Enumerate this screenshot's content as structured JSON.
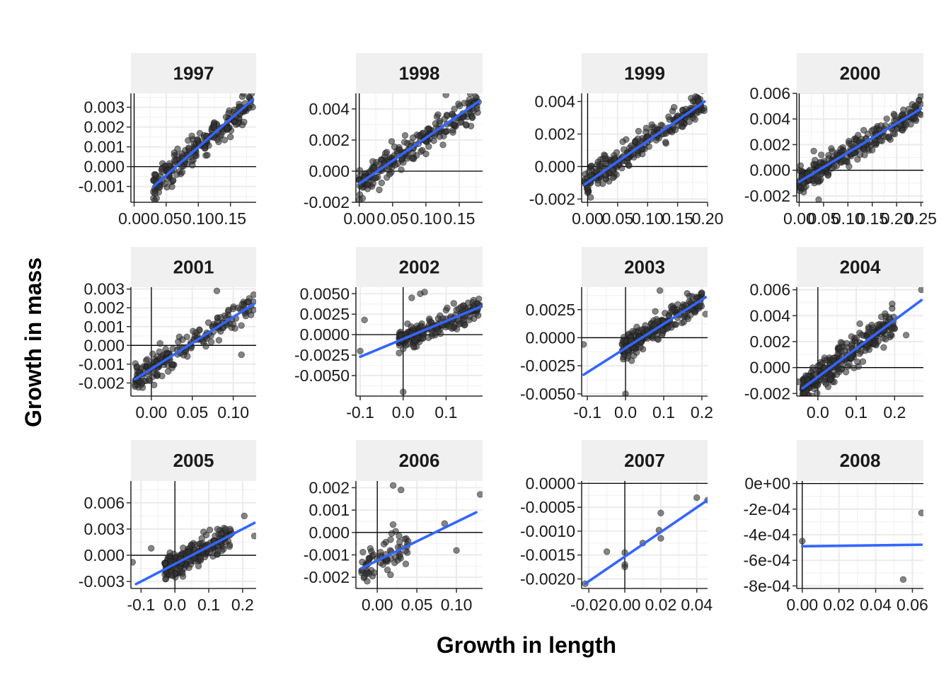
{
  "chart_data": {
    "type": "scatter",
    "title": "",
    "xlabel": "Growth in length",
    "ylabel": "Growth in mass",
    "layout": "facet-grid 3 rows x 4 columns, free scales",
    "grid": true,
    "reference_lines": "x=0 and y=0 drawn in black",
    "point_color": "#333333",
    "fit_color": "#3366FF",
    "strip_color": "#F0F0F0",
    "panels": [
      {
        "label": "1997",
        "xlim": [
          -0.005,
          0.19
        ],
        "ylim": [
          -0.0018,
          0.0037
        ],
        "xticks": [
          0,
          0.05,
          0.1,
          0.15
        ],
        "xtick_labels": [
          "0.00",
          "0.05",
          "0.10",
          "0.15"
        ],
        "yticks": [
          -0.001,
          0,
          0.001,
          0.002,
          0.003
        ],
        "ytick_labels": [
          "-0.001",
          "0.000",
          "0.001",
          "0.002",
          "0.003"
        ],
        "n": 220,
        "x_range": [
          0.03,
          0.185
        ],
        "fit": [
          [
            0.03,
            -0.001
          ],
          [
            0.185,
            0.0034
          ]
        ],
        "noise": 0.00045,
        "extra_points": [
          [
            0.17,
            0.0037
          ],
          [
            0.035,
            -0.0016
          ],
          [
            0.15,
            0.0015
          ]
        ]
      },
      {
        "label": "1998",
        "xlim": [
          -0.005,
          0.185
        ],
        "ylim": [
          -0.002,
          0.005
        ],
        "xticks": [
          0,
          0.05,
          0.1,
          0.15
        ],
        "xtick_labels": [
          "0.00",
          "0.05",
          "0.10",
          "0.15"
        ],
        "yticks": [
          -0.002,
          0,
          0.002,
          0.004
        ],
        "ytick_labels": [
          "-0.002",
          "0.000",
          "0.002",
          "0.004"
        ],
        "n": 230,
        "x_range": [
          0.0,
          0.18
        ],
        "fit": [
          [
            0.0,
            -0.0008
          ],
          [
            0.18,
            0.0045
          ]
        ],
        "noise": 0.0006,
        "extra_points": [
          [
            0.13,
            0.0049
          ],
          [
            0.03,
            -0.0012
          ],
          [
            0.16,
            0.003
          ]
        ]
      },
      {
        "label": "1999",
        "xlim": [
          -0.01,
          0.2
        ],
        "ylim": [
          -0.0022,
          0.0045
        ],
        "xticks": [
          0,
          0.05,
          0.1,
          0.15,
          0.2
        ],
        "xtick_labels": [
          "0.00",
          "0.05",
          "0.10",
          "0.15",
          "0.20"
        ],
        "yticks": [
          -0.002,
          0,
          0.002,
          0.004
        ],
        "ytick_labels": [
          "-0.002",
          "0.000",
          "0.002",
          "0.004"
        ],
        "n": 260,
        "x_range": [
          -0.005,
          0.195
        ],
        "fit": [
          [
            -0.005,
            -0.0011
          ],
          [
            0.195,
            0.004
          ]
        ],
        "noise": 0.0005,
        "extra_points": [
          [
            0.18,
            0.0043
          ],
          [
            0.005,
            -0.0019
          ],
          [
            0.13,
            0.0015
          ]
        ]
      },
      {
        "label": "2000",
        "xlim": [
          -0.005,
          0.255
        ],
        "ylim": [
          -0.0025,
          0.006
        ],
        "xticks": [
          0,
          0.05,
          0.1,
          0.15,
          0.2,
          0.25
        ],
        "xtick_labels": [
          "0.00",
          "0.05",
          "0.10",
          "0.15",
          "0.20",
          "0.25"
        ],
        "yticks": [
          -0.002,
          0,
          0.002,
          0.004,
          0.006
        ],
        "ytick_labels": [
          "-0.002",
          "0.000",
          "0.002",
          "0.004",
          "0.006"
        ],
        "n": 270,
        "x_range": [
          0.0,
          0.25
        ],
        "fit": [
          [
            0.0,
            -0.0009
          ],
          [
            0.25,
            0.0048
          ]
        ],
        "noise": 0.0006,
        "extra_points": [
          [
            0.25,
            0.0058
          ],
          [
            0.01,
            -0.0014
          ],
          [
            0.03,
            0.0015
          ],
          [
            0.04,
            -0.0023
          ]
        ]
      },
      {
        "label": "2001",
        "xlim": [
          -0.025,
          0.128
        ],
        "ylim": [
          -0.0027,
          0.0031
        ],
        "xticks": [
          0,
          0.05,
          0.1
        ],
        "xtick_labels": [
          "0.00",
          "0.05",
          "0.10"
        ],
        "yticks": [
          -0.002,
          -0.001,
          0,
          0.001,
          0.002,
          0.003
        ],
        "ytick_labels": [
          "-0.002",
          "-0.001",
          "0.000",
          "0.001",
          "0.002",
          "0.003"
        ],
        "n": 200,
        "x_range": [
          -0.02,
          0.125
        ],
        "fit": [
          [
            -0.02,
            -0.0018
          ],
          [
            0.125,
            0.0022
          ]
        ],
        "noise": 0.00045,
        "extra_points": [
          [
            0.08,
            0.0029
          ],
          [
            0.125,
            0.0027
          ],
          [
            0.11,
            -0.0005
          ],
          [
            -0.02,
            -0.0021
          ]
        ]
      },
      {
        "label": "2002",
        "xlim": [
          -0.11,
          0.185
        ],
        "ylim": [
          -0.0075,
          0.0058
        ],
        "xticks": [
          -0.1,
          0,
          0.1
        ],
        "xtick_labels": [
          "-0.1",
          "0.0",
          "0.1"
        ],
        "yticks": [
          -0.005,
          -0.0025,
          0,
          0.0025,
          0.005
        ],
        "ytick_labels": [
          "-0.0050",
          "-0.0025",
          "0.0000",
          "0.0025",
          "0.0050"
        ],
        "n": 210,
        "x_range": [
          -0.01,
          0.18
        ],
        "fit": [
          [
            -0.1,
            -0.0027
          ],
          [
            0.18,
            0.0034
          ]
        ],
        "noise": 0.0008,
        "extra_points": [
          [
            0.04,
            0.005
          ],
          [
            0.05,
            0.0052
          ],
          [
            0.0,
            -0.007
          ],
          [
            -0.1,
            -0.002
          ],
          [
            -0.09,
            0.0018
          ],
          [
            0.02,
            0.0045
          ]
        ]
      },
      {
        "label": "2003",
        "xlim": [
          -0.115,
          0.215
        ],
        "ylim": [
          -0.0052,
          0.0045
        ],
        "xticks": [
          -0.1,
          0,
          0.1,
          0.2
        ],
        "xtick_labels": [
          "-0.1",
          "0.0",
          "0.1",
          "0.2"
        ],
        "yticks": [
          -0.005,
          -0.0025,
          0,
          0.0025
        ],
        "ytick_labels": [
          "-0.0050",
          "-0.0025",
          "0.0000",
          "0.0025"
        ],
        "n": 240,
        "x_range": [
          -0.01,
          0.2
        ],
        "fit": [
          [
            -0.11,
            -0.0033
          ],
          [
            0.21,
            0.0036
          ]
        ],
        "noise": 0.0007,
        "extra_points": [
          [
            0.0,
            -0.005
          ],
          [
            -0.11,
            -0.0006
          ],
          [
            0.2,
            0.004
          ],
          [
            0.21,
            0.0021
          ],
          [
            0.09,
            0.0042
          ]
        ]
      },
      {
        "label": "2004",
        "xlim": [
          -0.055,
          0.275
        ],
        "ylim": [
          -0.0022,
          0.0062
        ],
        "xticks": [
          0,
          0.1,
          0.2
        ],
        "xtick_labels": [
          "0.0",
          "0.1",
          "0.2"
        ],
        "yticks": [
          -0.002,
          0,
          0.002,
          0.004,
          0.006
        ],
        "ytick_labels": [
          "-0.002",
          "0.000",
          "0.002",
          "0.004",
          "0.006"
        ],
        "n": 300,
        "x_range": [
          -0.04,
          0.2
        ],
        "fit": [
          [
            -0.04,
            -0.0016
          ],
          [
            0.27,
            0.0052
          ]
        ],
        "noise": 0.00075,
        "extra_points": [
          [
            0.27,
            0.006
          ],
          [
            0.23,
            0.0025
          ],
          [
            0.2,
            0.003
          ],
          [
            -0.05,
            -0.0011
          ]
        ]
      },
      {
        "label": "2005",
        "xlim": [
          -0.13,
          0.24
        ],
        "ylim": [
          -0.0038,
          0.0085
        ],
        "xticks": [
          -0.1,
          0,
          0.1,
          0.2
        ],
        "xtick_labels": [
          "-0.1",
          "0.0",
          "0.1",
          "0.2"
        ],
        "yticks": [
          -0.003,
          0,
          0.003,
          0.006
        ],
        "ytick_labels": [
          "-0.003",
          "0.000",
          "0.003",
          "0.006"
        ],
        "n": 220,
        "x_range": [
          -0.03,
          0.17
        ],
        "fit": [
          [
            -0.115,
            -0.0033
          ],
          [
            0.235,
            0.0037
          ]
        ],
        "noise": 0.0009,
        "extra_points": [
          [
            -0.125,
            -0.0008
          ],
          [
            -0.07,
            0.0008
          ],
          [
            0.205,
            0.0045
          ],
          [
            0.235,
            0.0022
          ],
          [
            0.15,
            0.003
          ]
        ]
      },
      {
        "label": "2006",
        "xlim": [
          -0.027,
          0.133
        ],
        "ylim": [
          -0.0025,
          0.0023
        ],
        "xticks": [
          0,
          0.05,
          0.1
        ],
        "xtick_labels": [
          "0.00",
          "0.05",
          "0.10"
        ],
        "yticks": [
          -0.002,
          -0.001,
          0,
          0.001,
          0.002
        ],
        "ytick_labels": [
          "-0.002",
          "-0.001",
          "0.000",
          "0.001",
          "0.002"
        ],
        "n": 70,
        "x_range": [
          -0.02,
          0.04
        ],
        "fit": [
          [
            -0.02,
            -0.0016
          ],
          [
            0.125,
            0.0009
          ]
        ],
        "noise": 0.00055,
        "extra_points": [
          [
            0.02,
            0.0021
          ],
          [
            0.03,
            0.0019
          ],
          [
            0.13,
            0.0017
          ],
          [
            0.1,
            -0.0008
          ],
          [
            0.085,
            0.0004
          ]
        ]
      },
      {
        "label": "2007",
        "xlim": [
          -0.024,
          0.046
        ],
        "ylim": [
          -0.0022,
          5e-05
        ],
        "xticks": [
          -0.02,
          0,
          0.02,
          0.04
        ],
        "xtick_labels": [
          "-0.02",
          "0.00",
          "0.02",
          "0.04"
        ],
        "yticks": [
          -0.002,
          -0.0015,
          -0.001,
          -0.0005,
          0
        ],
        "ytick_labels": [
          "-0.0020",
          "-0.0015",
          "-0.0010",
          "-0.0005",
          "0.0000"
        ],
        "n": 0,
        "x_range": [
          -0.02,
          0.045
        ],
        "fit": [
          [
            -0.022,
            -0.0021
          ],
          [
            0.046,
            -0.00035
          ]
        ],
        "noise": 0,
        "extra_points": [
          [
            -0.022,
            -0.0021
          ],
          [
            -0.01,
            -0.00143
          ],
          [
            0.0,
            -0.00145
          ],
          [
            0.0,
            -0.0017
          ],
          [
            0.0,
            -0.00175
          ],
          [
            0.01,
            -0.00125
          ],
          [
            0.019,
            -0.00098
          ],
          [
            0.02,
            -0.00062
          ],
          [
            0.02,
            -0.00115
          ],
          [
            0.04,
            -0.0003
          ],
          [
            0.046,
            -0.00035
          ]
        ]
      },
      {
        "label": "2008",
        "xlim": [
          -0.003,
          0.066
        ],
        "ylim": [
          -0.00082,
          2e-05
        ],
        "xticks": [
          0,
          0.02,
          0.04,
          0.06
        ],
        "xtick_labels": [
          "0.00",
          "0.02",
          "0.04",
          "0.06"
        ],
        "yticks": [
          -0.0008,
          -0.0006,
          -0.0004,
          -0.0002,
          0
        ],
        "ytick_labels": [
          "-8e-04",
          "-6e-04",
          "-4e-04",
          "-2e-04",
          "0e+00"
        ],
        "n": 0,
        "x_range": [
          0,
          0.065
        ],
        "fit": [
          [
            0.0,
            -0.00049
          ],
          [
            0.065,
            -0.000478
          ]
        ],
        "noise": 0,
        "extra_points": [
          [
            0.0,
            -0.00045
          ],
          [
            0.055,
            -0.00075
          ],
          [
            0.065,
            -0.00023
          ]
        ]
      }
    ]
  }
}
